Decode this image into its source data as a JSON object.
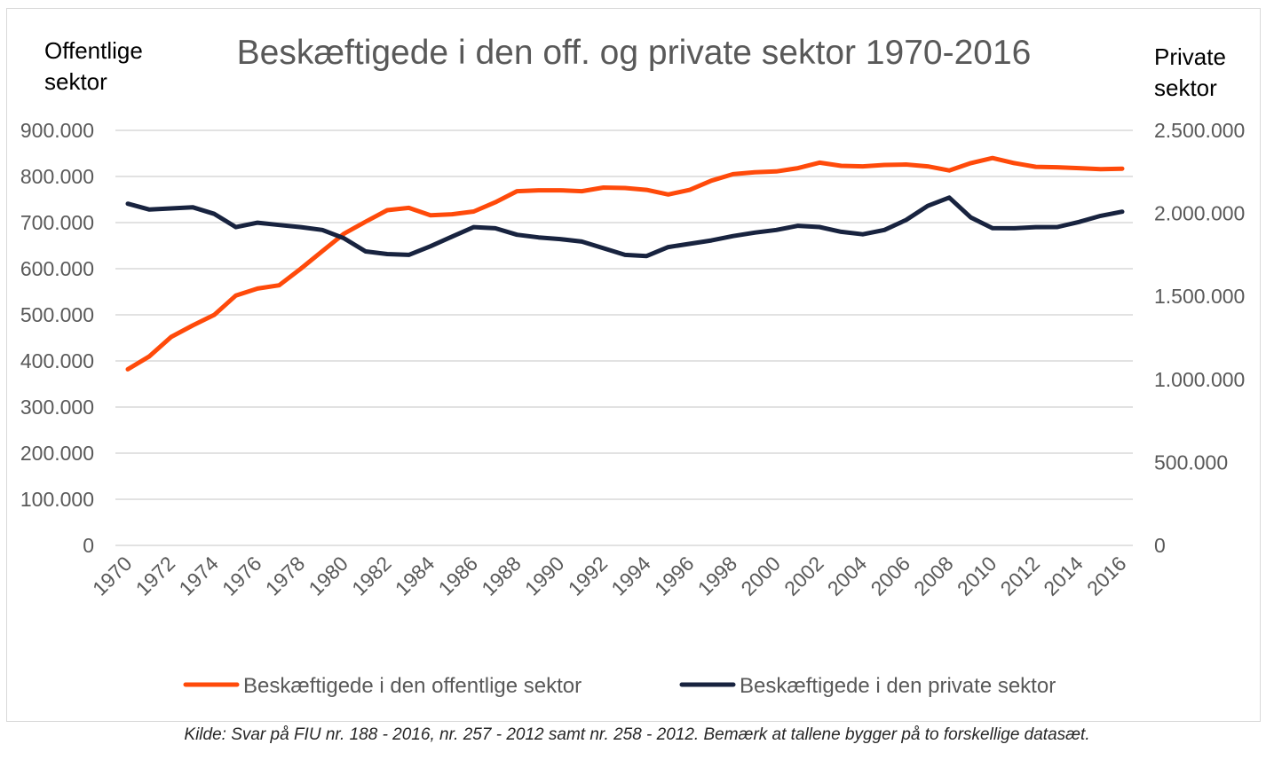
{
  "chart_data": {
    "type": "line",
    "title": "Beskæftigede i den off. og private sektor 1970-2016",
    "y_left_label": [
      "Offentlige",
      "sektor"
    ],
    "y_right_label": [
      "Private",
      "sektor"
    ],
    "y_left_ticks": [
      "0",
      "100.000",
      "200.000",
      "300.000",
      "400.000",
      "500.000",
      "600.000",
      "700.000",
      "800.000",
      "900.000"
    ],
    "y_right_ticks": [
      "0",
      "500.000",
      "1.000.000",
      "1.500.000",
      "2.000.000",
      "2.500.000"
    ],
    "ylim_left": [
      0,
      900000
    ],
    "ylim_right": [
      0,
      2500000
    ],
    "x_tick_labels": [
      "1970",
      "1972",
      "1974",
      "1976",
      "1978",
      "1980",
      "1982",
      "1984",
      "1986",
      "1988",
      "1990",
      "1992",
      "1994",
      "1996",
      "1998",
      "2000",
      "2002",
      "2004",
      "2006",
      "2008",
      "2010",
      "2012",
      "2014",
      "2016"
    ],
    "x": [
      1970,
      1971,
      1972,
      1973,
      1974,
      1975,
      1976,
      1977,
      1978,
      1979,
      1980,
      1981,
      1982,
      1983,
      1984,
      1985,
      1986,
      1987,
      1988,
      1989,
      1990,
      1991,
      1992,
      1993,
      1994,
      1995,
      1996,
      1997,
      1998,
      1999,
      2000,
      2001,
      2002,
      2003,
      2004,
      2005,
      2006,
      2007,
      2008,
      2009,
      2010,
      2011,
      2012,
      2013,
      2014,
      2015,
      2016
    ],
    "grid": true,
    "legend_position": "bottom",
    "series": [
      {
        "name": "Beskæftigede i den offentlige sektor",
        "axis": "left",
        "color": "#ff4a0a",
        "values": [
          382000,
          410000,
          452000,
          477000,
          500000,
          542000,
          557000,
          564000,
          600000,
          638000,
          676000,
          702000,
          727000,
          732000,
          716000,
          718000,
          724000,
          744000,
          768000,
          770000,
          770000,
          768000,
          776000,
          775000,
          771000,
          761000,
          771000,
          791000,
          805000,
          809000,
          811000,
          818000,
          830000,
          823000,
          822000,
          825000,
          826000,
          822000,
          813000,
          829000,
          840000,
          829000,
          821000,
          820000,
          818000,
          816000,
          817000
        ]
      },
      {
        "name": "Beskæftigede i den private sektor",
        "axis": "right",
        "color": "#18233f",
        "values": [
          2058000,
          2023000,
          2030000,
          2037000,
          1997000,
          1917000,
          1944000,
          1930000,
          1917000,
          1900000,
          1850000,
          1771000,
          1755000,
          1750000,
          1802000,
          1860000,
          1917000,
          1910000,
          1871000,
          1855000,
          1845000,
          1830000,
          1790000,
          1750000,
          1743000,
          1797000,
          1817000,
          1837000,
          1863000,
          1884000,
          1900000,
          1925000,
          1918000,
          1889000,
          1874000,
          1900000,
          1960000,
          2045000,
          2095000,
          1975000,
          1911000,
          1910000,
          1917000,
          1918000,
          1948000,
          1985000,
          2010000
        ]
      }
    ]
  },
  "source_note": "Kilde: Svar på FIU nr. 188 - 2016, nr. 257 - 2012 samt nr. 258 - 2012. Bemærk at tallene bygger på to forskellige datasæt."
}
